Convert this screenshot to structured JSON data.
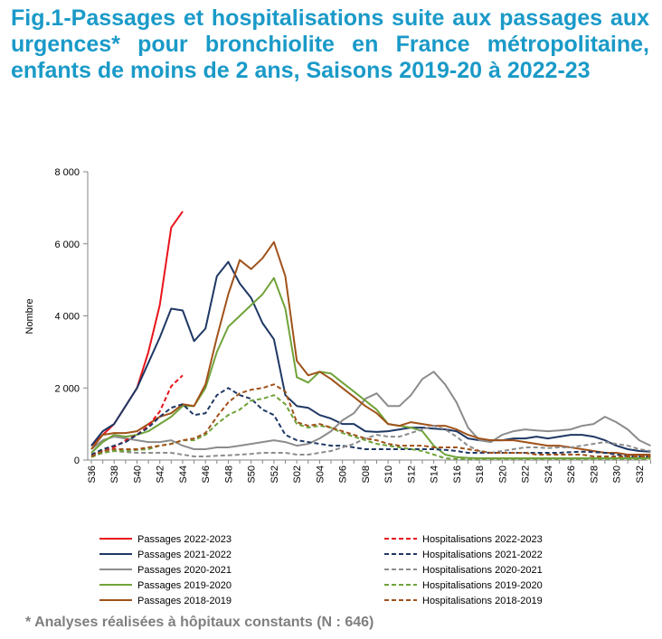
{
  "chart_data": {
    "type": "line",
    "title": "Fig.1-Passages et hospitalisations suite aux passages aux urgences* pour bronchiolite en France métropolitaine, enfants de moins de 2 ans, Saisons 2019-20 à 2022-23",
    "ylabel": "Nombre",
    "footnote": "* Analyses réalisées à hôpitaux constants (N : 646)",
    "categories": [
      "S36",
      null,
      "S38",
      null,
      "S40",
      null,
      "S42",
      null,
      "S44",
      null,
      "S46",
      null,
      "S48",
      null,
      "S50",
      null,
      "S52",
      null,
      "S02",
      null,
      "S04",
      null,
      "S06",
      null,
      "S08",
      null,
      "S10",
      null,
      "S12",
      null,
      "S14",
      null,
      "S16",
      null,
      "S18",
      null,
      "S20",
      null,
      "S22",
      null,
      "S24",
      null,
      "S26",
      null,
      "S28",
      null,
      "S30",
      null,
      "S32",
      null
    ],
    "ylim": [
      0,
      8000
    ],
    "yticks": [
      0,
      {
        "value": 2000,
        "label": "2 000"
      },
      {
        "value": 4000,
        "label": "4 000"
      },
      {
        "value": 6000,
        "label": "6 000"
      },
      {
        "value": 8000,
        "label": "8 000"
      }
    ],
    "grid": false,
    "series": [
      {
        "name": "Passages 2022-2023",
        "color": "#e8141b",
        "dashed": false,
        "values": [
          400,
          700,
          1000,
          1500,
          2000,
          3000,
          4300,
          6450,
          6900,
          null,
          null,
          null,
          null,
          null,
          null,
          null,
          null,
          null,
          null,
          null,
          null,
          null,
          null,
          null,
          null,
          null,
          null,
          null,
          null,
          null,
          null,
          null,
          null,
          null,
          null,
          null,
          null,
          null,
          null,
          null,
          null,
          null,
          null,
          null,
          null,
          null,
          null,
          null,
          null,
          null
        ]
      },
      {
        "name": "Passages 2021-2022",
        "color": "#1f3864",
        "dashed": false,
        "values": [
          400,
          800,
          1000,
          1500,
          2000,
          2700,
          3400,
          4200,
          4150,
          3300,
          3650,
          5100,
          5500,
          4900,
          4500,
          3800,
          3350,
          1800,
          1500,
          1450,
          1250,
          1150,
          1000,
          1000,
          800,
          780,
          800,
          850,
          900,
          900,
          870,
          850,
          800,
          600,
          550,
          550,
          550,
          600,
          600,
          650,
          600,
          650,
          700,
          700,
          650,
          550,
          400,
          300,
          250,
          230
        ]
      },
      {
        "name": "Passages 2020-2021",
        "color": "#8c8c8c",
        "dashed": false,
        "values": [
          300,
          550,
          650,
          600,
          550,
          500,
          500,
          550,
          400,
          300,
          300,
          350,
          350,
          400,
          450,
          500,
          550,
          500,
          400,
          450,
          600,
          800,
          1100,
          1300,
          1700,
          1850,
          1500,
          1500,
          1800,
          2250,
          2450,
          2100,
          1600,
          900,
          550,
          500,
          700,
          800,
          850,
          820,
          800,
          820,
          850,
          950,
          1000,
          1200,
          1050,
          850,
          550,
          400
        ]
      },
      {
        "name": "Passages 2019-2020",
        "color": "#70a33a",
        "dashed": false,
        "values": [
          200,
          500,
          700,
          650,
          700,
          800,
          1000,
          1200,
          1500,
          1500,
          2000,
          3000,
          3700,
          4000,
          4300,
          4600,
          5050,
          4200,
          2300,
          2150,
          2450,
          2400,
          2150,
          1900,
          1650,
          1400,
          1000,
          950,
          900,
          800,
          400,
          150,
          80,
          60,
          50,
          50,
          50,
          50,
          50,
          50,
          50,
          50,
          50,
          50,
          50,
          50,
          50,
          50,
          50,
          50
        ]
      },
      {
        "name": "Passages 2018-2019",
        "color": "#a0521a",
        "dashed": false,
        "values": [
          300,
          700,
          750,
          750,
          800,
          1000,
          1200,
          1300,
          1550,
          1500,
          2100,
          3400,
          4600,
          5550,
          5300,
          5600,
          6050,
          5100,
          2750,
          2350,
          2450,
          2250,
          2000,
          1750,
          1500,
          1300,
          1000,
          950,
          1050,
          1000,
          950,
          950,
          850,
          700,
          600,
          550,
          550,
          550,
          500,
          450,
          400,
          400,
          350,
          300,
          250,
          200,
          200,
          150,
          150,
          150
        ]
      },
      {
        "name": "Hospitalisations 2022-2023",
        "color": "#e8141b",
        "dashed": true,
        "values": [
          150,
          250,
          350,
          550,
          700,
          950,
          1350,
          2050,
          2350,
          null,
          null,
          null,
          null,
          null,
          null,
          null,
          null,
          null,
          null,
          null,
          null,
          null,
          null,
          null,
          null,
          null,
          null,
          null,
          null,
          null,
          null,
          null,
          null,
          null,
          null,
          null,
          null,
          null,
          null,
          null,
          null,
          null,
          null,
          null,
          null,
          null,
          null,
          null,
          null,
          null
        ]
      },
      {
        "name": "Hospitalisations 2021-2022",
        "color": "#1f3864",
        "dashed": true,
        "values": [
          150,
          300,
          400,
          500,
          700,
          900,
          1200,
          1450,
          1550,
          1250,
          1300,
          1800,
          2000,
          1800,
          1700,
          1400,
          1250,
          700,
          550,
          500,
          450,
          400,
          400,
          350,
          300,
          300,
          300,
          300,
          300,
          300,
          300,
          280,
          250,
          200,
          200,
          200,
          200,
          200,
          200,
          200,
          200,
          200,
          220,
          230,
          220,
          200,
          150,
          100,
          100,
          100
        ]
      },
      {
        "name": "Hospitalisations 2020-2021",
        "color": "#8c8c8c",
        "dashed": true,
        "values": [
          100,
          200,
          250,
          220,
          200,
          200,
          200,
          200,
          150,
          100,
          100,
          120,
          130,
          150,
          170,
          200,
          200,
          200,
          150,
          150,
          200,
          250,
          350,
          450,
          600,
          700,
          650,
          650,
          750,
          850,
          950,
          850,
          650,
          400,
          250,
          200,
          250,
          300,
          350,
          350,
          330,
          350,
          350,
          400,
          450,
          500,
          450,
          400,
          300,
          250
        ]
      },
      {
        "name": "Hospitalisations 2019-2020",
        "color": "#70a33a",
        "dashed": true,
        "values": [
          80,
          200,
          250,
          250,
          280,
          300,
          400,
          450,
          550,
          550,
          700,
          1000,
          1250,
          1400,
          1650,
          1700,
          1800,
          1550,
          1000,
          900,
          950,
          900,
          750,
          650,
          550,
          450,
          400,
          350,
          300,
          250,
          150,
          50,
          30,
          30,
          30,
          30,
          30,
          30,
          30,
          30,
          30,
          30,
          30,
          30,
          30,
          30,
          30,
          30,
          30,
          30
        ]
      },
      {
        "name": "Hospitalisations 2018-2019",
        "color": "#a0521a",
        "dashed": true,
        "values": [
          100,
          250,
          300,
          300,
          300,
          350,
          400,
          450,
          550,
          600,
          750,
          1200,
          1600,
          1850,
          1950,
          2000,
          2100,
          1900,
          1050,
          950,
          1000,
          900,
          800,
          700,
          600,
          550,
          450,
          400,
          400,
          400,
          350,
          350,
          350,
          300,
          250,
          200,
          200,
          200,
          200,
          150,
          150,
          150,
          150,
          150,
          100,
          100,
          100,
          100,
          100,
          100
        ]
      }
    ]
  }
}
